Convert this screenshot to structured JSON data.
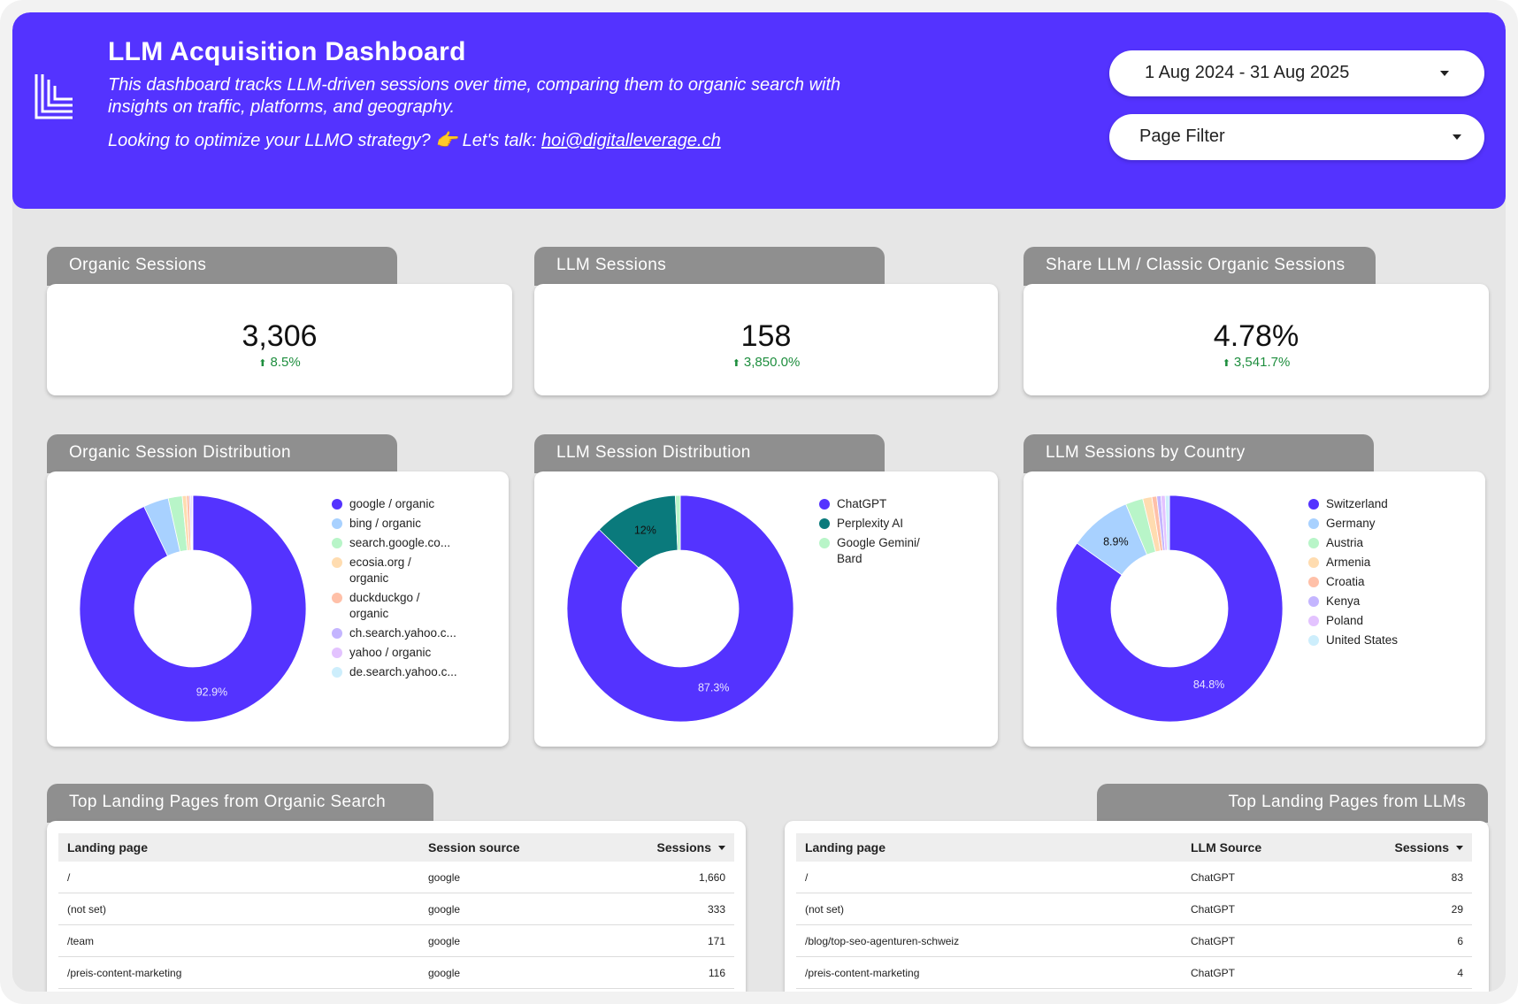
{
  "header": {
    "title": "LLM Acquisition Dashboard",
    "description": "This dashboard tracks LLM-driven sessions over time, comparing them to organic search with insights on traffic, platforms, and geography.",
    "cta_text": "Looking to optimize your LLMO strategy? 👉 Let's talk: ",
    "cta_email": "hoi@digitalleverage.ch",
    "date_range": "1 Aug 2024 - 31 Aug 2025",
    "page_filter": "Page Filter",
    "bg_color": "#5433ff"
  },
  "kpis": [
    {
      "title": "Organic Sessions",
      "value": "3,306",
      "delta": "8.5%"
    },
    {
      "title": "LLM Sessions",
      "value": "158",
      "delta": "3,850.0%"
    },
    {
      "title": "Share LLM / Classic Organic Sessions",
      "value": "4.78%",
      "delta": "3,541.7%"
    }
  ],
  "chart_data": [
    {
      "type": "pie",
      "title": "Organic Session Distribution",
      "categories": [
        "google / organic",
        "bing / organic",
        "search.google.co...",
        "ecosia.org / organic",
        "duckduckgo / organic",
        "ch.search.yahoo.c...",
        "yahoo / organic",
        "de.search.yahoo.c..."
      ],
      "values": [
        92.9,
        3.6,
        2.0,
        0.6,
        0.4,
        0.2,
        0.2,
        0.1
      ],
      "colors": [
        "#5433ff",
        "#a8d1ff",
        "#b8f5c8",
        "#ffdcb0",
        "#ffc0a8",
        "#c4b5ff",
        "#e3c3ff",
        "#cdeefc"
      ],
      "labels": [
        "92.9%",
        "",
        "",
        "",
        "",
        "",
        "",
        ""
      ],
      "legend_lines": [
        [
          "google / organic"
        ],
        [
          "bing / organic"
        ],
        [
          "search.google.co..."
        ],
        [
          "ecosia.org /",
          "organic"
        ],
        [
          "duckduckgo /",
          "organic"
        ],
        [
          "ch.search.yahoo.c..."
        ],
        [
          "yahoo / organic"
        ],
        [
          "de.search.yahoo.c..."
        ]
      ]
    },
    {
      "type": "pie",
      "title": "LLM Session Distribution",
      "categories": [
        "ChatGPT",
        "Perplexity AI",
        "Google Gemini/ Bard"
      ],
      "values": [
        87.3,
        12.0,
        0.7
      ],
      "colors": [
        "#5433ff",
        "#0a7a7c",
        "#b8f5c8"
      ],
      "labels": [
        "87.3%",
        "12%",
        ""
      ],
      "legend_lines": [
        [
          "ChatGPT"
        ],
        [
          "Perplexity AI"
        ],
        [
          "Google Gemini/",
          "Bard"
        ]
      ]
    },
    {
      "type": "pie",
      "title": "LLM Sessions by Country",
      "categories": [
        "Switzerland",
        "Germany",
        "Austria",
        "Armenia",
        "Croatia",
        "Kenya",
        "Poland",
        "United States"
      ],
      "values": [
        84.8,
        8.9,
        2.5,
        1.3,
        0.7,
        0.6,
        0.6,
        0.6
      ],
      "colors": [
        "#5433ff",
        "#a8d1ff",
        "#b8f5c8",
        "#ffdcb0",
        "#ffc0a8",
        "#c4b5ff",
        "#e3c3ff",
        "#cdeefc"
      ],
      "labels": [
        "84.8%",
        "8.9%",
        "",
        "",
        "",
        "",
        "",
        ""
      ],
      "legend_lines": [
        [
          "Switzerland"
        ],
        [
          "Germany"
        ],
        [
          "Austria"
        ],
        [
          "Armenia"
        ],
        [
          "Croatia"
        ],
        [
          "Kenya"
        ],
        [
          "Poland"
        ],
        [
          "United States"
        ]
      ]
    }
  ],
  "tables": {
    "organic": {
      "title": "Top Landing Pages from Organic Search",
      "headers": [
        "Landing page",
        "Session source",
        "Sessions"
      ],
      "rows": [
        [
          "/",
          "google",
          "1,660"
        ],
        [
          "(not set)",
          "google",
          "333"
        ],
        [
          "/team",
          "google",
          "171"
        ],
        [
          "/preis-content-marketing",
          "google",
          "116"
        ]
      ]
    },
    "llm": {
      "title": "Top Landing Pages from LLMs",
      "headers": [
        "Landing page",
        "LLM Source",
        "Sessions"
      ],
      "rows": [
        [
          "/",
          "ChatGPT",
          "83"
        ],
        [
          "(not set)",
          "ChatGPT",
          "29"
        ],
        [
          "/blog/top-seo-agenturen-schweiz",
          "ChatGPT",
          "6"
        ],
        [
          "/preis-content-marketing",
          "ChatGPT",
          "4"
        ]
      ]
    }
  }
}
